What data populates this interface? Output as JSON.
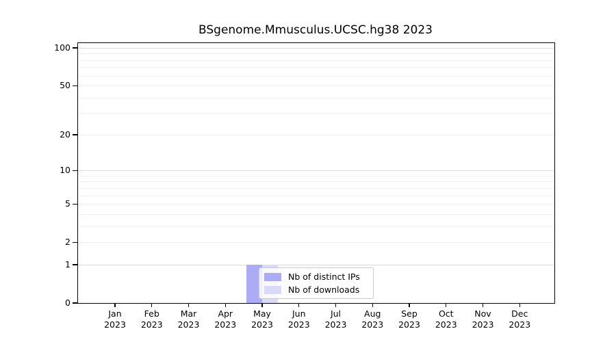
{
  "chart_data": {
    "type": "bar",
    "title": "BSgenome.Mmusculus.UCSC.hg38 2023",
    "categories": [
      "Jan",
      "Feb",
      "Mar",
      "Apr",
      "May",
      "Jun",
      "Jul",
      "Aug",
      "Sep",
      "Oct",
      "Nov",
      "Dec"
    ],
    "category_year": "2023",
    "series": [
      {
        "name": "Nb of distinct IPs",
        "color": "#acacf6",
        "values": [
          0,
          0,
          0,
          0,
          1,
          0,
          0,
          0,
          0,
          0,
          0,
          0
        ]
      },
      {
        "name": "Nb of downloads",
        "color": "#dadaf8",
        "values": [
          0,
          0,
          0,
          0,
          1,
          0,
          0,
          0,
          0,
          0,
          0,
          0
        ]
      }
    ],
    "yscale": "log1p",
    "yticks": [
      0,
      1,
      2,
      5,
      10,
      20,
      50,
      100
    ],
    "ylim": [
      0,
      109
    ],
    "grid": {
      "major": [
        1,
        10,
        100
      ],
      "minor": [
        2,
        3,
        4,
        5,
        6,
        7,
        8,
        9,
        20,
        30,
        40,
        50,
        60,
        70,
        80,
        90
      ],
      "major_color": "#d9d9d9",
      "minor_color": "#efefef"
    },
    "legend": {
      "position": "inset-bottom-center",
      "entries": [
        "Nb of distinct IPs",
        "Nb of downloads"
      ]
    },
    "axis_color": "#000000",
    "background": "#ffffff"
  }
}
